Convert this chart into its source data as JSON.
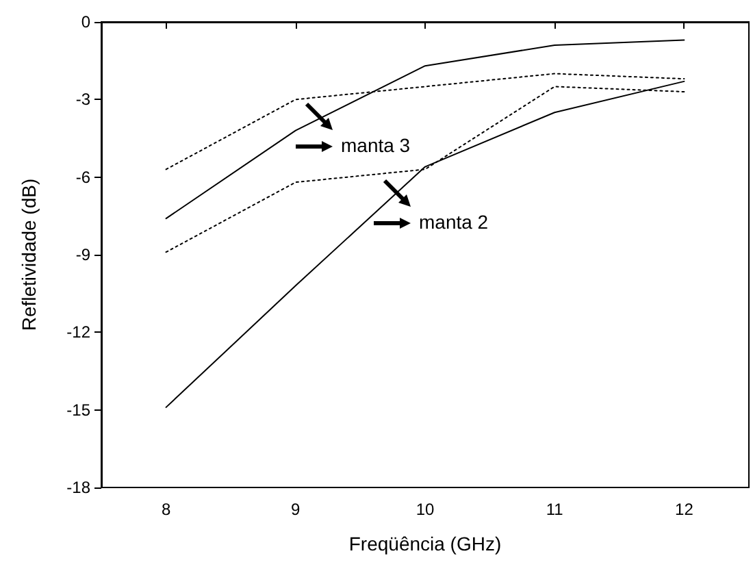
{
  "chart_data": {
    "type": "line",
    "xlabel": "Freqüência (GHz)",
    "ylabel": "Refletividade (dB)",
    "x": [
      8,
      9,
      10,
      11,
      12
    ],
    "series": [
      {
        "color": "#000000",
        "line_style": "solid",
        "values": [
          -7.6,
          -4.2,
          -1.7,
          -0.9,
          -0.7
        ]
      },
      {
        "color": "#000000",
        "line_style": "dotted",
        "values": [
          -5.7,
          -3.0,
          -2.5,
          -2.0,
          -2.2
        ]
      },
      {
        "color": "#000000",
        "line_style": "solid",
        "values": [
          -14.9,
          -10.2,
          -5.6,
          -3.5,
          -2.3
        ]
      },
      {
        "color": "#000000",
        "line_style": "dotted",
        "values": [
          -8.9,
          -6.2,
          -5.7,
          -2.5,
          -2.7
        ]
      }
    ],
    "xlim": [
      7.5,
      12.5
    ],
    "xticks": [
      8,
      9,
      10,
      11,
      12
    ],
    "ylim": [
      -18,
      0
    ],
    "yticks": [
      -18,
      -15,
      -12,
      -9,
      -6,
      -3,
      0
    ],
    "grid": false,
    "marker": "none",
    "annotations": [
      "manta 3",
      "manta 2"
    ]
  }
}
